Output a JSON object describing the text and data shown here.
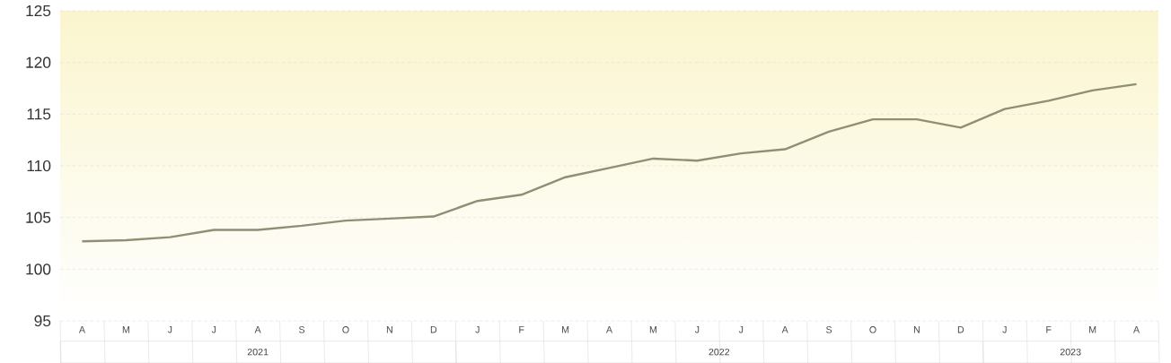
{
  "chart_data": {
    "type": "line",
    "categories": [
      "A",
      "M",
      "J",
      "J",
      "A",
      "S",
      "O",
      "N",
      "D",
      "J",
      "F",
      "M",
      "A",
      "M",
      "J",
      "J",
      "A",
      "S",
      "O",
      "N",
      "D",
      "J",
      "F",
      "M",
      "A"
    ],
    "series": [
      {
        "color": "#8f8f75",
        "values": [
          102.7,
          102.8,
          103.1,
          103.8,
          103.8,
          104.2,
          104.7,
          104.9,
          105.1,
          106.6,
          107.2,
          108.9,
          109.8,
          110.7,
          110.5,
          111.2,
          111.6,
          113.3,
          114.5,
          114.5,
          113.7,
          115.5,
          116.3,
          117.3,
          117.9
        ]
      }
    ],
    "ylim": [
      95,
      125
    ],
    "yticks": [
      95,
      100,
      105,
      110,
      115,
      120,
      125
    ],
    "grid": "y",
    "marker": "none",
    "line_style": "solid",
    "annotations": [
      "2021",
      "2022",
      "2023"
    ]
  }
}
